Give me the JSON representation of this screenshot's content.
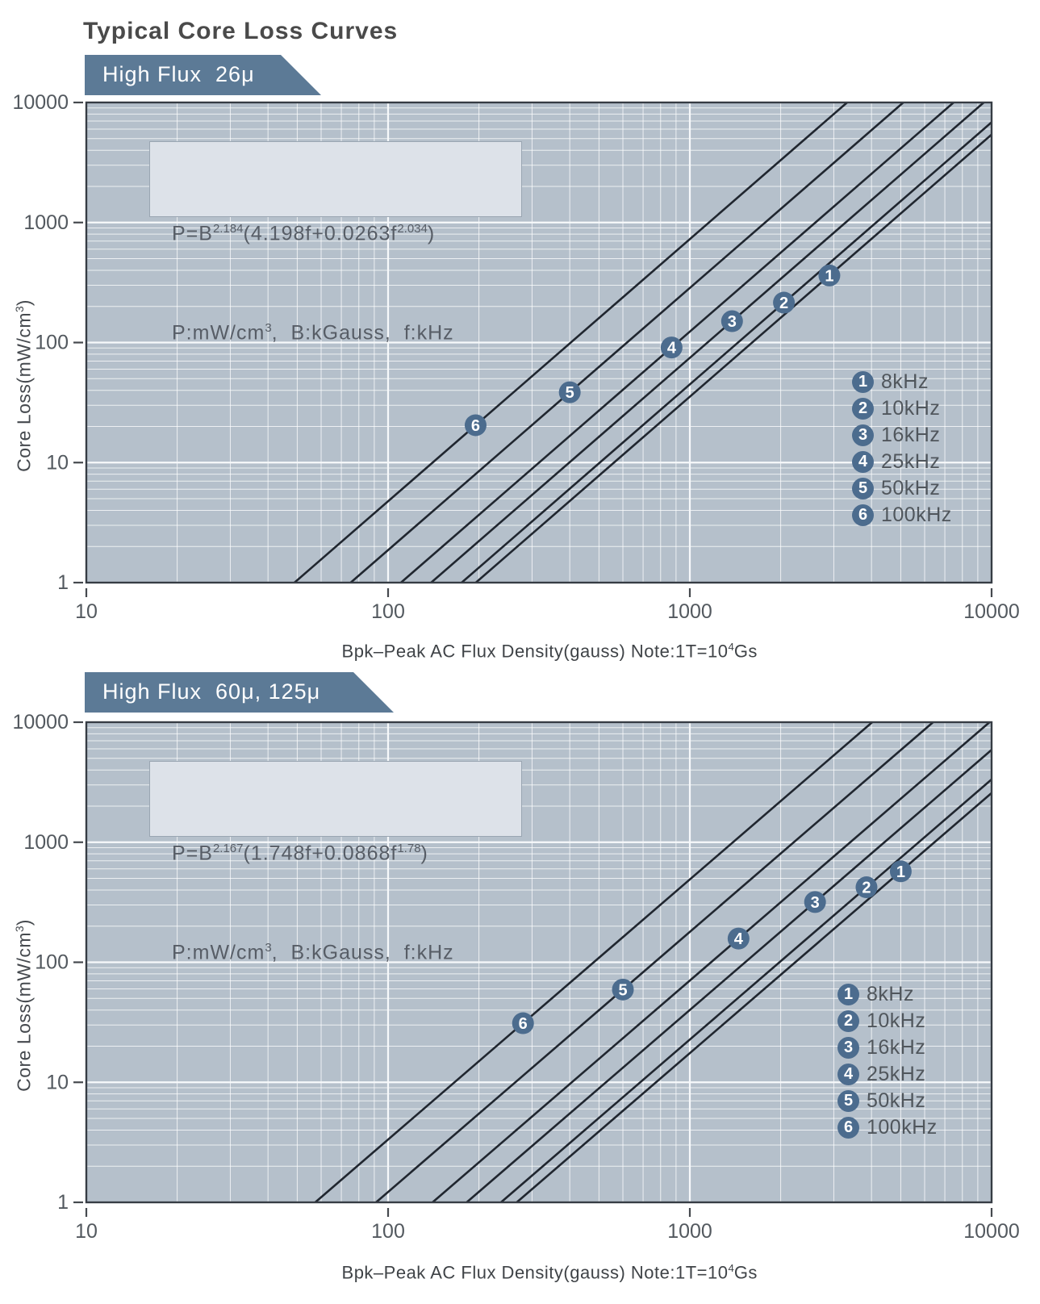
{
  "page_title": "Typical Core Loss Curves",
  "style": {
    "plot_bg": "#b5c0cb",
    "grid_minor": "rgba(255,255,255,0.75)",
    "grid_major": "#f7f9fb",
    "plot_border": "#363c44",
    "curve_color": "#20262f",
    "marker_fill": "#4c6c8e",
    "tick_text": "#53595f",
    "banner_bg": "#5c7a96"
  },
  "axis": {
    "x_label_main": "Bpk–Peak AC Flux Density(gauss) Note:1T=10",
    "x_label_sup": "4",
    "x_label_end": "Gs",
    "y_label_main": "Core Loss(mW/cm",
    "y_label_sup": "3",
    "y_label_end": ")",
    "x_ticks": [
      "10",
      "100",
      "1000",
      "10000"
    ],
    "y_ticks": [
      "10000",
      "1000",
      "100",
      "10",
      "1"
    ]
  },
  "legend_items": [
    {
      "num": "1",
      "label": "8kHz"
    },
    {
      "num": "2",
      "label": "10kHz"
    },
    {
      "num": "3",
      "label": "16kHz"
    },
    {
      "num": "4",
      "label": "25kHz"
    },
    {
      "num": "5",
      "label": "50kHz"
    },
    {
      "num": "6",
      "label": "100kHz"
    }
  ],
  "charts": [
    {
      "banner": "High Flux  26μ",
      "formula": {
        "p1": "P=B",
        "exp1": "2.184",
        "p2": "(4.198f+0.0263f",
        "exp2": "2.034",
        "p3": ")",
        "u1": "P:mW/cm",
        "u_sup": "3",
        "u2": ",  B:kGauss,  f:kHz"
      },
      "model": {
        "b_exponent": 2.184,
        "k1": 4.198,
        "k2": 0.0263,
        "f_exponent": 2.034
      },
      "series": [
        {
          "marker": "1",
          "freq_khz": 8,
          "label": "8kHz",
          "marker_b_gauss": 2900
        },
        {
          "marker": "2",
          "freq_khz": 10,
          "label": "10kHz",
          "marker_b_gauss": 2050
        },
        {
          "marker": "3",
          "freq_khz": 16,
          "label": "16kHz",
          "marker_b_gauss": 1380
        },
        {
          "marker": "4",
          "freq_khz": 25,
          "label": "25kHz",
          "marker_b_gauss": 870
        },
        {
          "marker": "5",
          "freq_khz": 50,
          "label": "50kHz",
          "marker_b_gauss": 400
        },
        {
          "marker": "6",
          "freq_khz": 100,
          "label": "100kHz",
          "marker_b_gauss": 195
        }
      ]
    },
    {
      "banner": "High Flux  60μ, 125μ",
      "formula": {
        "p1": "P=B",
        "exp1": "2.167",
        "p2": "(1.748f+0.0868f",
        "exp2": "1.78",
        "p3": ")",
        "u1": "P:mW/cm",
        "u_sup": "3",
        "u2": ",  B:kGauss,  f:kHz"
      },
      "model": {
        "b_exponent": 2.167,
        "k1": 1.748,
        "k2": 0.0868,
        "f_exponent": 1.78
      },
      "series": [
        {
          "marker": "1",
          "freq_khz": 8,
          "label": "8kHz",
          "marker_b_gauss": 5000
        },
        {
          "marker": "2",
          "freq_khz": 10,
          "label": "10kHz",
          "marker_b_gauss": 3850
        },
        {
          "marker": "3",
          "freq_khz": 16,
          "label": "16kHz",
          "marker_b_gauss": 2600
        },
        {
          "marker": "4",
          "freq_khz": 25,
          "label": "25kHz",
          "marker_b_gauss": 1450
        },
        {
          "marker": "5",
          "freq_khz": 50,
          "label": "50kHz",
          "marker_b_gauss": 600
        },
        {
          "marker": "6",
          "freq_khz": 100,
          "label": "100kHz",
          "marker_b_gauss": 280
        }
      ]
    }
  ],
  "chart_data": [
    {
      "type": "line",
      "title": "High Flux 26μ core loss",
      "xlabel": "Bpk–Peak AC Flux Density (gauss), Note: 1T=10^4 Gs",
      "ylabel": "Core Loss (mW/cm^3)",
      "x_scale": "log",
      "y_scale": "log",
      "xlim": [
        10,
        10000
      ],
      "ylim": [
        1,
        10000
      ],
      "grid": true,
      "legend_position": "lower right inside plot",
      "formula": "P = B^2.184 (4.198f + 0.0263f^2.034), P:mW/cm^3, B:kGauss, f:kHz",
      "series": [
        {
          "name": "8kHz",
          "points_b_gauss_vs_p": [
            [
              100,
              0.23
            ],
            [
              195.5,
              1
            ],
            [
              1000,
              35.4
            ],
            [
              2900,
              363
            ],
            [
              10000,
              5410
            ]
          ]
        },
        {
          "name": "10kHz",
          "points_b_gauss_vs_p": [
            [
              100,
              0.29
            ],
            [
              175.3,
              1
            ],
            [
              1000,
              44.8
            ],
            [
              2050,
              215
            ],
            [
              10000,
              6850
            ]
          ]
        },
        {
          "name": "16kHz",
          "points_b_gauss_vs_p": [
            [
              100,
              0.49
            ],
            [
              138.9,
              1
            ],
            [
              1000,
              74.6
            ],
            [
              1380,
              151
            ],
            [
              10000,
              11400
            ]
          ]
        },
        {
          "name": "25kHz",
          "points_b_gauss_vs_p": [
            [
              100,
              0.81
            ],
            [
              110.3,
              1
            ],
            [
              870,
              91
            ],
            [
              1000,
              123
            ],
            [
              10000,
              18800
            ]
          ]
        },
        {
          "name": "50kHz",
          "points_b_gauss_vs_p": [
            [
              75.1,
              1
            ],
            [
              100,
              1.87
            ],
            [
              400,
              38.8
            ],
            [
              1000,
              285
            ],
            [
              10000,
              43600
            ]
          ]
        },
        {
          "name": "100kHz",
          "points_b_gauss_vs_p": [
            [
              49.0,
              1
            ],
            [
              100,
              4.76
            ],
            [
              195,
              20.4
            ],
            [
              1000,
              727
            ],
            [
              10000,
              111000
            ]
          ]
        }
      ]
    },
    {
      "type": "line",
      "title": "High Flux 60μ, 125μ core loss",
      "xlabel": "Bpk–Peak AC Flux Density (gauss), Note: 1T=10^4 Gs",
      "ylabel": "Core Loss (mW/cm^3)",
      "x_scale": "log",
      "y_scale": "log",
      "xlim": [
        10,
        10000
      ],
      "ylim": [
        1,
        10000
      ],
      "grid": true,
      "legend_position": "lower right inside plot",
      "formula": "P = B^2.167 (1.748f + 0.0868f^1.78), P:mW/cm^3, B:kGauss, f:kHz",
      "series": [
        {
          "name": "8kHz",
          "points_b_gauss_vs_p": [
            [
              100,
              0.12
            ],
            [
              266.9,
              1
            ],
            [
              1000,
              17.5
            ],
            [
              5000,
              572
            ],
            [
              10000,
              2570
            ]
          ]
        },
        {
          "name": "10kHz",
          "points_b_gauss_vs_p": [
            [
              100,
              0.15
            ],
            [
              236.6,
              1
            ],
            [
              1000,
              22.7
            ],
            [
              3850,
              421
            ],
            [
              10000,
              3340
            ]
          ]
        },
        {
          "name": "16kHz",
          "points_b_gauss_vs_p": [
            [
              100,
              0.27
            ],
            [
              182.2,
              1
            ],
            [
              1000,
              40.0
            ],
            [
              2600,
              319
            ],
            [
              10000,
              5880
            ]
          ]
        },
        {
          "name": "25kHz",
          "points_b_gauss_vs_p": [
            [
              100,
              0.48
            ],
            [
              140.4,
              1
            ],
            [
              1000,
              70.4
            ],
            [
              1450,
              160
            ],
            [
              10000,
              10300
            ]
          ]
        },
        {
          "name": "50kHz",
          "points_b_gauss_vs_p": [
            [
              91.2,
              1
            ],
            [
              100,
              1.22
            ],
            [
              600,
              60
            ],
            [
              1000,
              179
            ],
            [
              10000,
              26300
            ]
          ]
        },
        {
          "name": "100kHz",
          "points_b_gauss_vs_p": [
            [
              57.3,
              1
            ],
            [
              100,
              3.34
            ],
            [
              280,
              31
            ],
            [
              1000,
              490
            ],
            [
              10000,
              72000
            ]
          ]
        }
      ]
    }
  ]
}
